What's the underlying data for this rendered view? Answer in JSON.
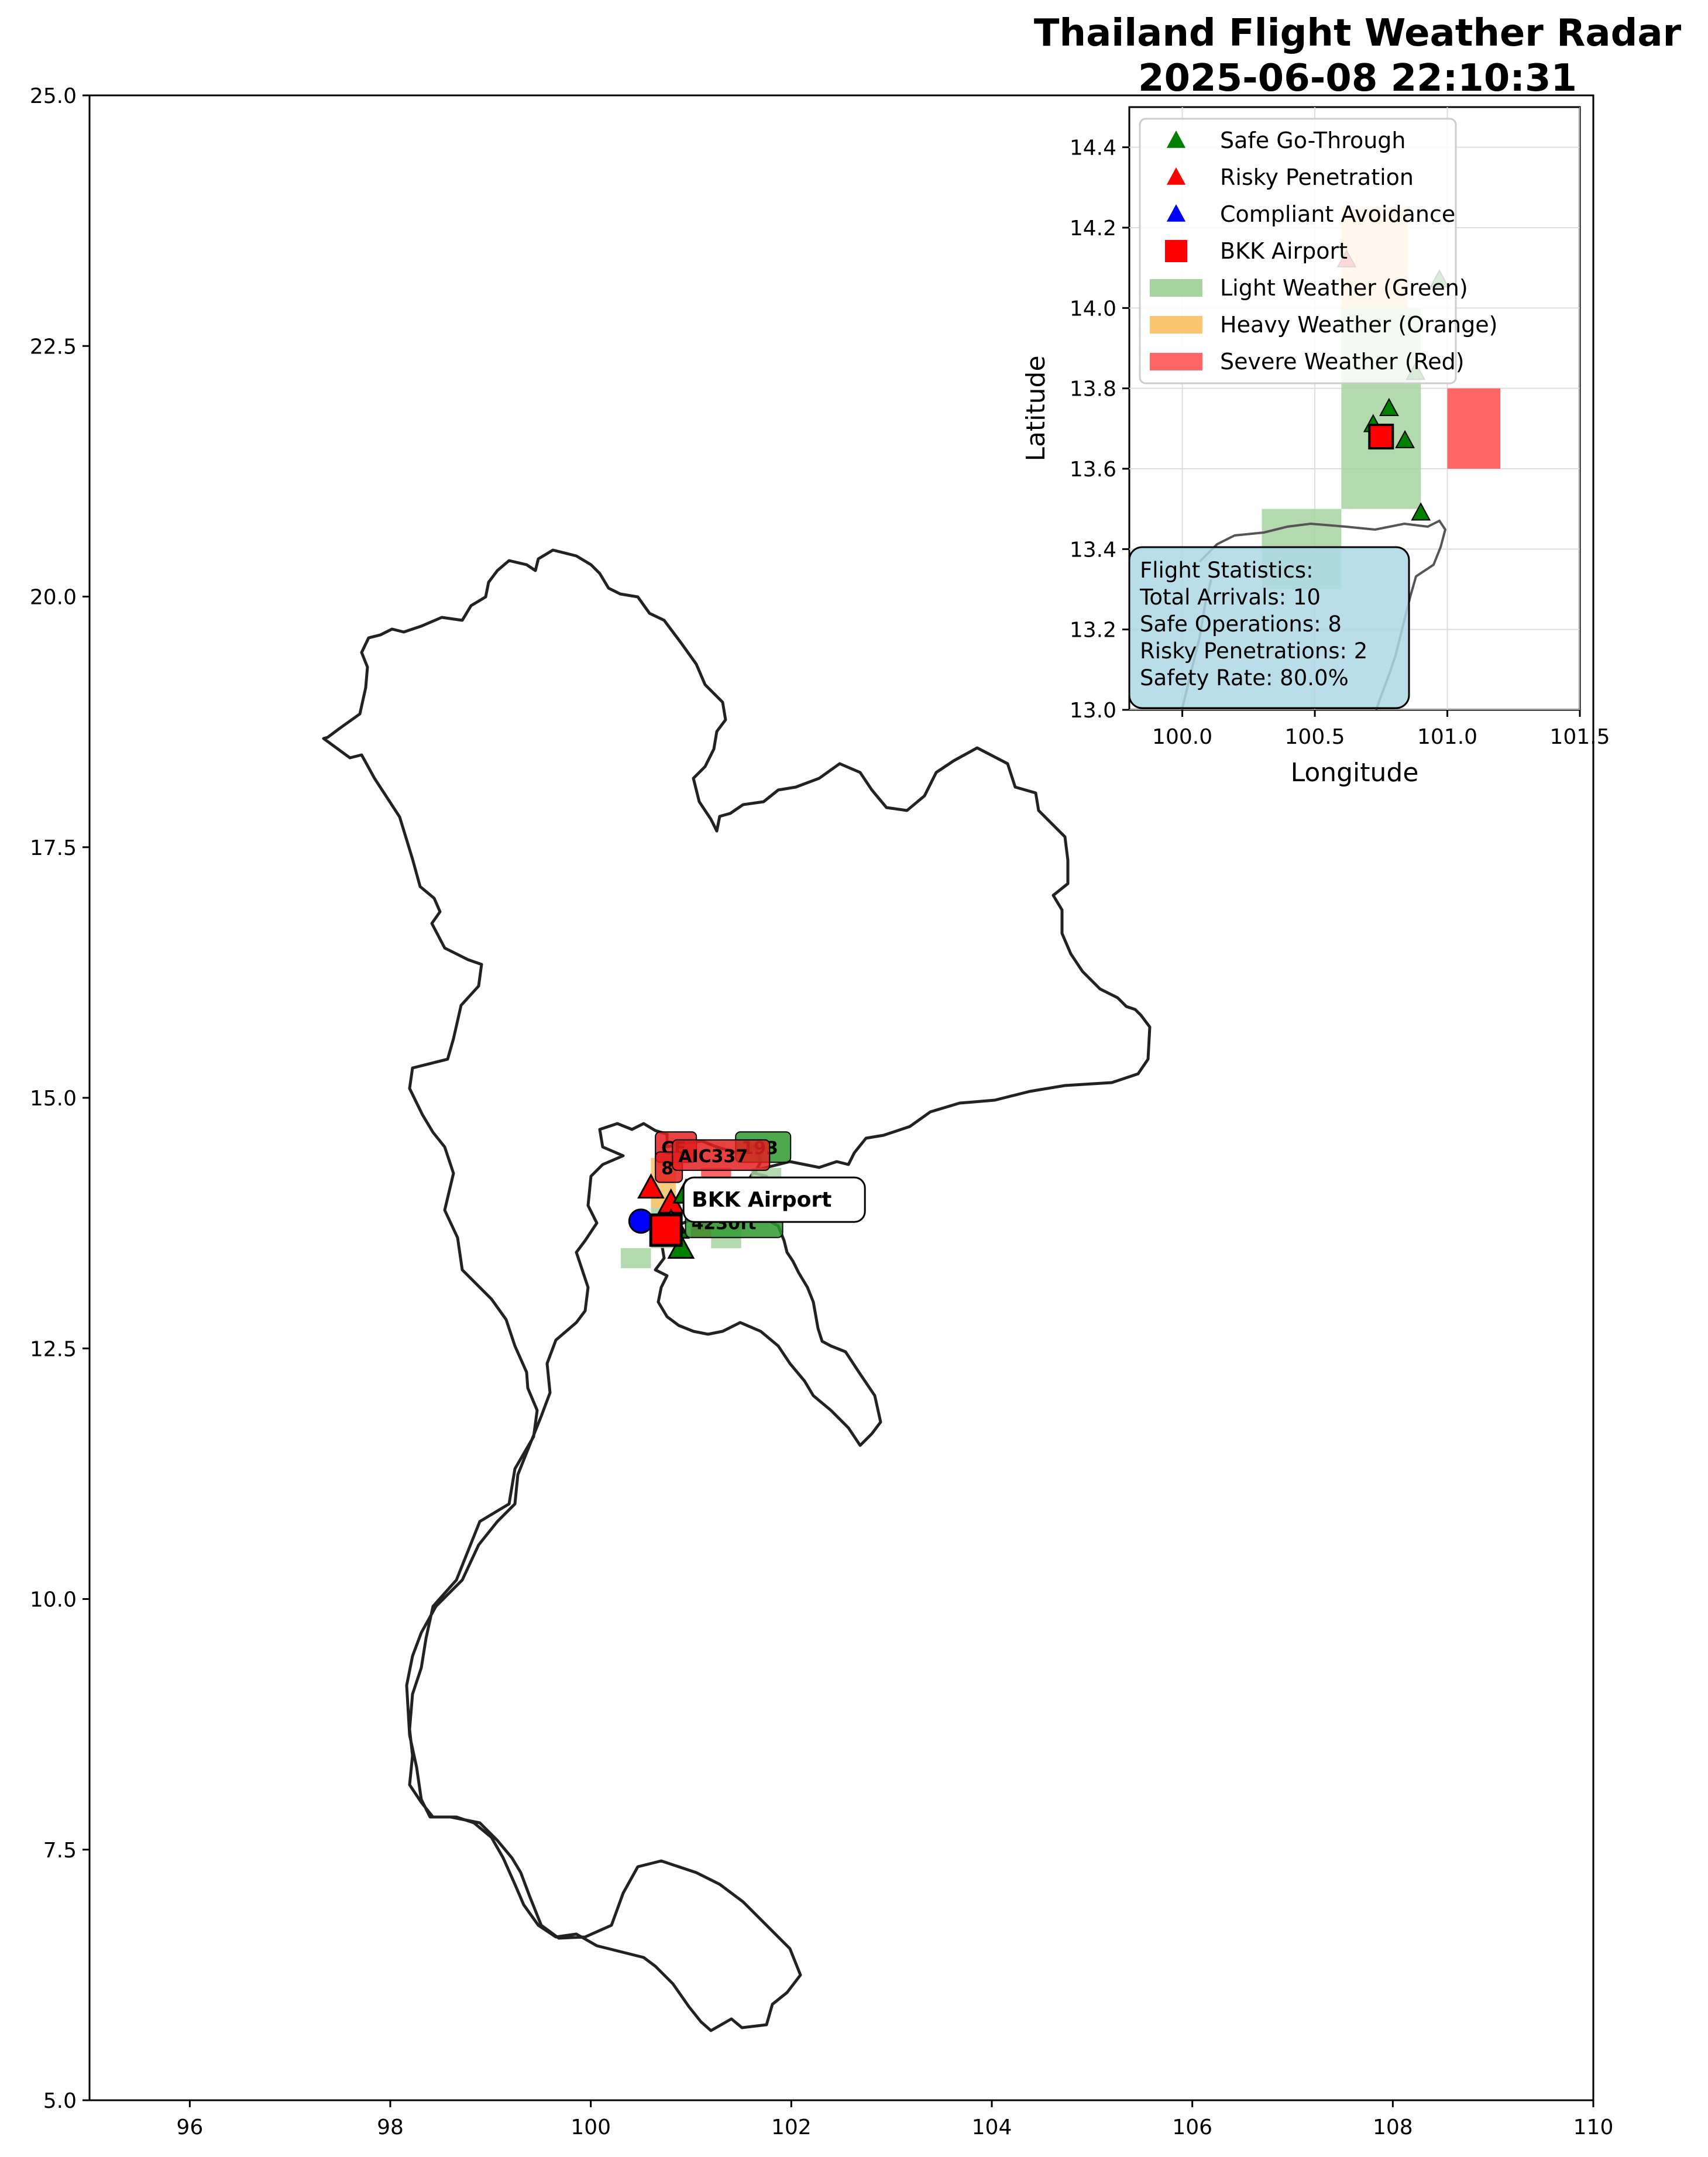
{
  "chart_data": [
    {
      "type": "scatter",
      "title_lines": [
        "Thailand Flight Weather Radar",
        "2025-06-08 22:10:31"
      ],
      "xlabel": "",
      "ylabel": "",
      "xlim": [
        95,
        110
      ],
      "ylim": [
        5,
        25
      ],
      "x_ticks": [
        96,
        98,
        100,
        102,
        104,
        106,
        108,
        110
      ],
      "y_ticks": [
        5.0,
        7.5,
        10.0,
        12.5,
        15.0,
        17.5,
        20.0,
        22.5,
        25.0
      ],
      "grid": false,
      "weather_cells": [
        {
          "level": "light",
          "lon": [
            100.3,
            100.6
          ],
          "lat": [
            13.3,
            13.5
          ]
        },
        {
          "level": "light",
          "lon": [
            100.6,
            100.9
          ],
          "lat": [
            13.5,
            14.0
          ]
        },
        {
          "level": "light",
          "lon": [
            101.2,
            101.5
          ],
          "lat": [
            13.5,
            13.9
          ]
        },
        {
          "level": "light",
          "lon": [
            101.6,
            101.9
          ],
          "lat": [
            13.8,
            14.3
          ]
        },
        {
          "level": "heavy",
          "lon": [
            100.6,
            100.85
          ],
          "lat": [
            13.9,
            14.4
          ]
        },
        {
          "level": "severe",
          "lon": [
            101.0,
            101.2
          ],
          "lat": [
            13.6,
            13.8
          ]
        },
        {
          "level": "severe",
          "lon": [
            101.1,
            101.4
          ],
          "lat": [
            14.0,
            14.3
          ]
        }
      ],
      "flights": [
        {
          "status": "risky",
          "lon": 100.6,
          "lat": 14.1
        },
        {
          "status": "risky",
          "lon": 100.8,
          "lat": 13.95
        },
        {
          "status": "safe",
          "lon": 100.95,
          "lat": 14.05
        },
        {
          "status": "safe",
          "lon": 100.9,
          "lat": 13.5
        },
        {
          "status": "safe",
          "lon": 100.85,
          "lat": 13.7
        },
        {
          "status": "safe",
          "lon": 100.8,
          "lat": 13.75
        },
        {
          "status": "avoid",
          "lon": 100.5,
          "lat": 13.77
        }
      ],
      "airport": {
        "lon": 100.75,
        "lat": 13.68,
        "label": "BKK Airport"
      },
      "flight_labels": [
        {
          "text": "CE",
          "lon": 100.75,
          "lat": 14.45,
          "status": "risky"
        },
        {
          "text": "8",
          "lon": 100.75,
          "lat": 14.25,
          "status": "risky"
        },
        {
          "text": "193",
          "lon": 101.55,
          "lat": 14.45,
          "status": "safe"
        },
        {
          "text": "AIC337",
          "lon": 100.92,
          "lat": 14.37,
          "status": "risky"
        },
        {
          "text": "4230ft",
          "lon": 101.05,
          "lat": 13.7,
          "status": "safe"
        }
      ]
    },
    {
      "type": "scatter",
      "title": "",
      "xlabel": "Longitude",
      "ylabel": "Latitude",
      "xlim": [
        99.8,
        101.5
      ],
      "ylim": [
        13.0,
        14.5
      ],
      "x_ticks": [
        "100.0",
        "100.5",
        "101.0",
        "101.5"
      ],
      "y_ticks": [
        "13.0",
        "13.2",
        "13.4",
        "13.6",
        "13.8",
        "14.0",
        "14.2",
        "14.4"
      ],
      "grid": true,
      "legend_position": "upper-left",
      "legend": [
        {
          "label": "Safe Go-Through",
          "marker": "triangle",
          "color": "#008000"
        },
        {
          "label": "Risky Penetration",
          "marker": "triangle",
          "color": "#ff0000"
        },
        {
          "label": "Compliant Avoidance",
          "marker": "triangle",
          "color": "#0000ff"
        },
        {
          "label": "BKK Airport",
          "marker": "square",
          "color": "#ff0000"
        },
        {
          "label": "Light Weather (Green)",
          "marker": "patch",
          "color": "#a6d3a0"
        },
        {
          "label": "Heavy Weather (Orange)",
          "marker": "patch",
          "color": "#fbc56f"
        },
        {
          "label": "Severe Weather (Red)",
          "marker": "patch",
          "color": "#ff6666"
        }
      ],
      "weather_cells": [
        {
          "level": "light",
          "lon": [
            100.3,
            100.6
          ],
          "lat": [
            13.3,
            13.5
          ]
        },
        {
          "level": "light",
          "lon": [
            100.6,
            100.9
          ],
          "lat": [
            13.5,
            14.0
          ]
        },
        {
          "level": "heavy",
          "lon": [
            100.6,
            100.85
          ],
          "lat": [
            14.0,
            14.25
          ]
        },
        {
          "level": "severe",
          "lon": [
            101.0,
            101.2
          ],
          "lat": [
            13.6,
            13.8
          ]
        }
      ],
      "flights": [
        {
          "status": "safe",
          "lon": 100.78,
          "lat": 13.75
        },
        {
          "status": "safe",
          "lon": 100.84,
          "lat": 13.67
        },
        {
          "status": "safe",
          "lon": 100.9,
          "lat": 13.49
        },
        {
          "status": "safe",
          "lon": 100.72,
          "lat": 13.71
        },
        {
          "status": "safe",
          "lon": 100.88,
          "lat": 13.84
        },
        {
          "status": "safe",
          "lon": 100.97,
          "lat": 14.07
        },
        {
          "status": "risky",
          "lon": 100.62,
          "lat": 14.12
        }
      ],
      "airport": {
        "lon": 100.75,
        "lat": 13.68
      }
    }
  ],
  "stats": {
    "lines": [
      "Flight Statistics:",
      "Total Arrivals: 10",
      "Safe Operations: 8",
      "Risky Penetrations: 2",
      "Safety Rate: 80.0%"
    ]
  },
  "colors": {
    "safe": "#008000",
    "risky": "#ff0000",
    "avoid": "#0000ff",
    "light": "#a6d3a0",
    "heavy": "#fbc56f",
    "severe": "#ff6666",
    "stats_box": "#add8e6",
    "coast": "#222222"
  }
}
